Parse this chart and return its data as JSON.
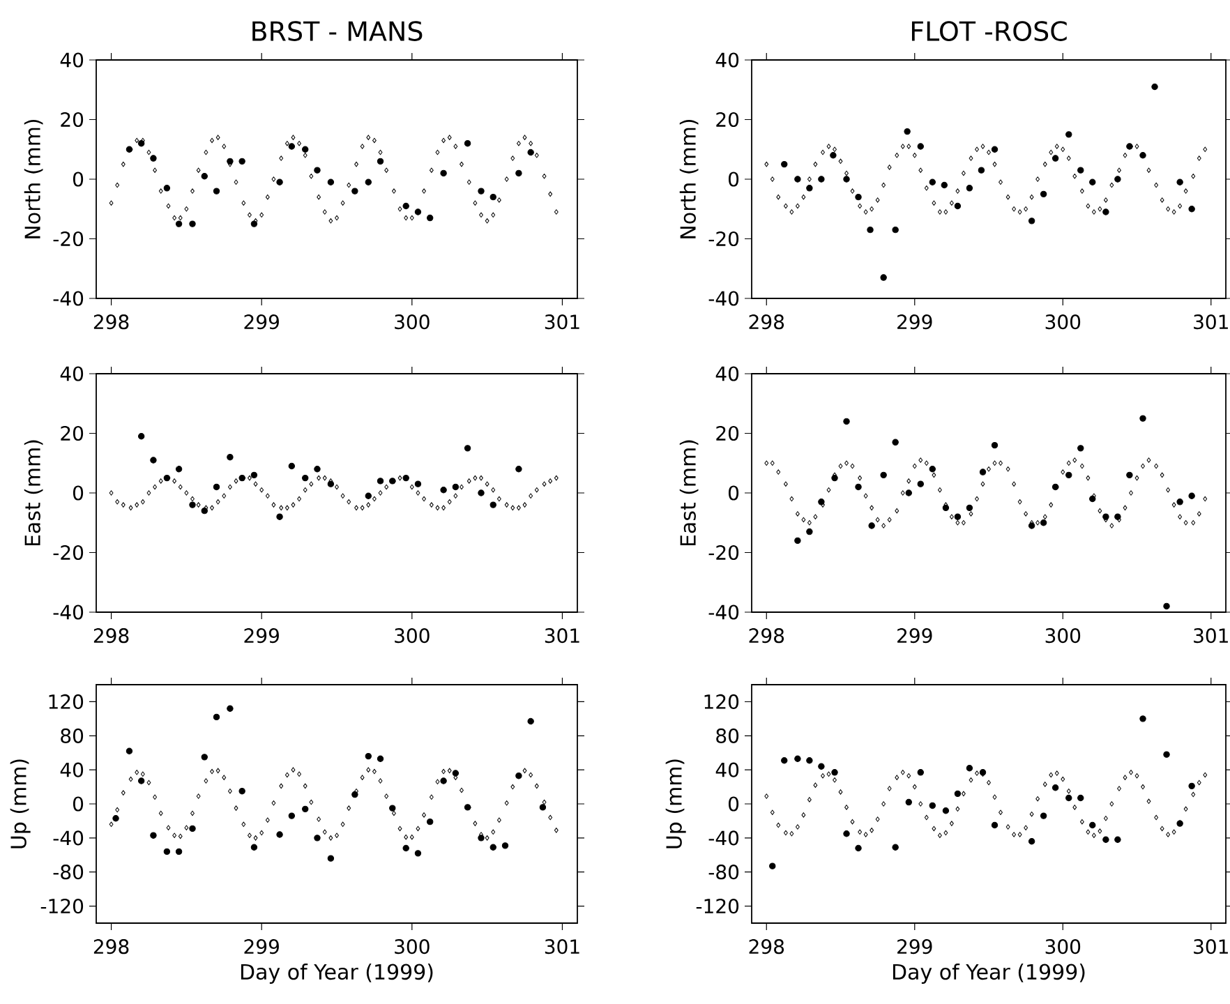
{
  "chart_data": [
    {
      "type": "scatter",
      "title": "BRST   - MANS",
      "ylabel": "North (mm)",
      "xlim": [
        297.9,
        301.1
      ],
      "xticks": [
        298,
        299,
        300,
        301
      ],
      "ylim": [
        -40,
        40
      ],
      "yticks": [
        -40,
        -20,
        0,
        20,
        40
      ],
      "x": [
        298,
        298.04,
        298.08,
        298.13,
        298.17,
        298.21,
        298.25,
        298.29,
        298.33,
        298.38,
        298.42,
        298.46,
        298.5,
        298.54,
        298.58,
        298.63,
        298.67,
        298.71,
        298.75,
        298.79,
        298.83,
        298.88,
        298.92,
        298.96,
        299,
        299.04,
        299.08,
        299.13,
        299.17,
        299.21,
        299.25,
        299.29,
        299.33,
        299.38,
        299.42,
        299.46,
        299.5,
        299.54,
        299.58,
        299.63,
        299.67,
        299.71,
        299.75,
        299.79,
        299.83,
        299.88,
        299.92,
        299.96,
        300,
        300.04,
        300.08,
        300.13,
        300.17,
        300.21,
        300.25,
        300.29,
        300.33,
        300.38,
        300.42,
        300.46,
        300.5,
        300.54,
        300.58,
        300.63,
        300.67,
        300.71,
        300.75,
        300.79,
        300.83,
        300.88,
        300.92,
        300.96
      ],
      "series": [
        {
          "color": "#000000",
          "marker": "diamond",
          "values": [
            -8,
            -2,
            5,
            10,
            13,
            13,
            9,
            3,
            -4,
            -9,
            -13,
            -13,
            -10,
            -4,
            3,
            9,
            13,
            14,
            11,
            5,
            -1,
            -8,
            -12,
            -14,
            -12,
            -6,
            0,
            7,
            12,
            14,
            12,
            8,
            1,
            -6,
            -11,
            -14,
            -13,
            -8,
            -2,
            5,
            11,
            14,
            13,
            9,
            3,
            -4,
            -10,
            -13,
            -13,
            null,
            -4,
            3,
            9,
            13,
            14,
            11,
            5,
            -1,
            -8,
            -12,
            -14,
            -12,
            -7,
            0,
            7,
            12,
            14,
            12,
            8,
            1,
            -5,
            -11
          ]
        },
        {
          "color": "#000000",
          "marker": "circle",
          "x": [
            298.12,
            298.2,
            298.28,
            298.37,
            298.45,
            298.54,
            298.62,
            298.7,
            298.79,
            298.87,
            298.95,
            299.12,
            299.2,
            299.29,
            299.37,
            299.46,
            299.62,
            299.71,
            299.79,
            299.96,
            300.04,
            300.12,
            300.21,
            300.37,
            300.46,
            300.54,
            300.71,
            300.79
          ],
          "values": [
            10,
            12,
            7,
            -3,
            -15,
            -15,
            1,
            -4,
            6,
            6,
            -15,
            -1,
            11,
            10,
            3,
            -1,
            -4,
            -1,
            6,
            -9,
            -11,
            -13,
            2,
            12,
            -4,
            -6,
            2,
            9
          ]
        }
      ]
    },
    {
      "type": "scatter",
      "title": "FLOT -ROSC",
      "ylabel": "North (mm)",
      "xlim": [
        297.9,
        301.1
      ],
      "xticks": [
        298,
        299,
        300,
        301
      ],
      "ylim": [
        -40,
        40
      ],
      "yticks": [
        -40,
        -20,
        0,
        20,
        40
      ],
      "x": [
        298,
        298.04,
        298.08,
        298.13,
        298.17,
        298.21,
        298.25,
        298.29,
        298.33,
        298.38,
        298.42,
        298.46,
        298.5,
        298.54,
        298.58,
        298.63,
        298.67,
        298.71,
        298.75,
        298.79,
        298.83,
        298.88,
        298.92,
        298.96,
        299,
        299.04,
        299.08,
        299.13,
        299.17,
        299.21,
        299.25,
        299.29,
        299.33,
        299.38,
        299.42,
        299.46,
        299.5,
        299.54,
        299.58,
        299.63,
        299.67,
        299.71,
        299.75,
        299.79,
        299.83,
        299.88,
        299.92,
        299.96,
        300,
        300.04,
        300.08,
        300.13,
        300.17,
        300.21,
        300.25,
        300.29,
        300.33,
        300.38,
        300.42,
        300.46,
        300.5,
        300.54,
        300.58,
        300.63,
        300.67,
        300.71,
        300.75,
        300.79,
        300.83,
        300.88,
        300.92,
        300.96
      ],
      "series": [
        {
          "color": "#000000",
          "marker": "diamond",
          "values": [
            5,
            0,
            -6,
            -9,
            -11,
            -9,
            -6,
            0,
            5,
            9,
            11,
            10,
            6,
            2,
            -4,
            -9,
            -11,
            -10,
            -7,
            -2,
            4,
            8,
            11,
            11,
            8,
            3,
            -3,
            -8,
            -11,
            -11,
            -8,
            -4,
            2,
            7,
            10,
            11,
            9,
            5,
            -1,
            -6,
            -10,
            -11,
            -10,
            -6,
            0,
            5,
            9,
            11,
            10,
            7,
            1,
            -4,
            -9,
            -11,
            -10,
            -7,
            -2,
            3,
            8,
            11,
            11,
            null,
            3,
            -2,
            -7,
            -10,
            -11,
            -9,
            -4,
            1,
            7,
            10
          ]
        },
        {
          "color": "#000000",
          "marker": "circle",
          "x": [
            298.12,
            298.21,
            298.29,
            298.37,
            298.45,
            298.54,
            298.62,
            298.7,
            298.79,
            298.87,
            298.95,
            299.04,
            299.12,
            299.2,
            299.29,
            299.37,
            299.45,
            299.54,
            299.79,
            299.87,
            299.95,
            300.04,
            300.12,
            300.2,
            300.29,
            300.37,
            300.45,
            300.54,
            300.62,
            300.79,
            300.87
          ],
          "values": [
            5,
            0,
            -3,
            0,
            8,
            0,
            -6,
            -17,
            -33,
            -17,
            16,
            11,
            -1,
            -2,
            -9,
            -3,
            3,
            10,
            -14,
            -5,
            7,
            15,
            3,
            -1,
            -11,
            0,
            11,
            8,
            31,
            -1,
            -10
          ]
        }
      ]
    },
    {
      "type": "scatter",
      "ylabel": "East  (mm)",
      "xlim": [
        297.9,
        301.1
      ],
      "xticks": [
        298,
        299,
        300,
        301
      ],
      "ylim": [
        -40,
        40
      ],
      "yticks": [
        -40,
        -20,
        0,
        20,
        40
      ],
      "x": [
        298,
        298.04,
        298.08,
        298.13,
        298.17,
        298.21,
        298.25,
        298.29,
        298.33,
        298.38,
        298.42,
        298.46,
        298.5,
        298.54,
        298.58,
        298.63,
        298.67,
        298.71,
        298.75,
        298.79,
        298.83,
        298.88,
        298.92,
        298.96,
        299,
        299.04,
        299.08,
        299.13,
        299.17,
        299.21,
        299.25,
        299.29,
        299.33,
        299.38,
        299.42,
        299.46,
        299.5,
        299.54,
        299.58,
        299.63,
        299.67,
        299.71,
        299.75,
        299.79,
        299.83,
        299.88,
        299.92,
        299.96,
        300,
        300.04,
        300.08,
        300.13,
        300.17,
        300.21,
        300.25,
        300.29,
        300.33,
        300.38,
        300.42,
        300.46,
        300.5,
        300.54,
        300.58,
        300.63,
        300.67,
        300.71,
        300.75,
        300.79,
        300.83,
        300.88,
        300.92,
        300.96
      ],
      "series": [
        {
          "color": "#000000",
          "marker": "diamond",
          "values": [
            0,
            -3,
            -4,
            -5,
            -4,
            -3,
            0,
            2,
            4,
            5,
            4,
            2,
            0,
            -2,
            -4,
            -5,
            -5,
            -3,
            -1,
            2,
            4,
            5,
            5,
            3,
            1,
            -1,
            -4,
            -5,
            -5,
            -4,
            -2,
            1,
            3,
            5,
            5,
            4,
            2,
            -1,
            -3,
            -5,
            -5,
            -4,
            -2,
            0,
            2,
            4,
            5,
            null,
            2,
            0,
            -2,
            -4,
            -5,
            -5,
            -3,
            -1,
            2,
            4,
            5,
            5,
            3,
            1,
            -2,
            -4,
            -5,
            -5,
            -4,
            -1,
            1,
            3,
            4,
            5
          ]
        },
        {
          "color": "#000000",
          "marker": "circle",
          "x": [
            298.2,
            298.28,
            298.37,
            298.45,
            298.54,
            298.62,
            298.7,
            298.79,
            298.87,
            298.95,
            299.12,
            299.2,
            299.29,
            299.37,
            299.46,
            299.71,
            299.79,
            299.87,
            299.96,
            300.04,
            300.21,
            300.29,
            300.37,
            300.46,
            300.54,
            300.71
          ],
          "values": [
            19,
            11,
            5,
            8,
            -4,
            -6,
            2,
            12,
            5,
            6,
            -8,
            9,
            5,
            8,
            3,
            -1,
            4,
            4,
            5,
            3,
            1,
            2,
            15,
            0,
            -4,
            8
          ]
        }
      ]
    },
    {
      "type": "scatter",
      "ylabel": "East  (mm)",
      "xlim": [
        297.9,
        301.1
      ],
      "xticks": [
        298,
        299,
        300,
        301
      ],
      "ylim": [
        -40,
        40
      ],
      "yticks": [
        -40,
        -20,
        0,
        20,
        40
      ],
      "x": [
        298,
        298.04,
        298.08,
        298.13,
        298.17,
        298.21,
        298.25,
        298.29,
        298.33,
        298.38,
        298.42,
        298.46,
        298.5,
        298.54,
        298.58,
        298.63,
        298.67,
        298.71,
        298.75,
        298.79,
        298.83,
        298.88,
        298.92,
        298.96,
        299,
        299.04,
        299.08,
        299.13,
        299.17,
        299.21,
        299.25,
        299.29,
        299.33,
        299.38,
        299.42,
        299.46,
        299.5,
        299.54,
        299.58,
        299.63,
        299.67,
        299.71,
        299.75,
        299.79,
        299.83,
        299.88,
        299.92,
        299.96,
        300,
        300.04,
        300.08,
        300.13,
        300.17,
        300.21,
        300.25,
        300.29,
        300.33,
        300.38,
        300.42,
        300.46,
        300.5,
        300.54,
        300.58,
        300.63,
        300.67,
        300.71,
        300.75,
        300.79,
        300.83,
        300.88,
        300.92,
        300.96
      ],
      "series": [
        {
          "color": "#000000",
          "marker": "diamond",
          "values": [
            10,
            10,
            7,
            3,
            -2,
            -7,
            -9,
            -10,
            -8,
            -4,
            1,
            6,
            9,
            10,
            9,
            5,
            -1,
            -5,
            -9,
            -11,
            -9,
            -6,
            0,
            4,
            9,
            11,
            10,
            6,
            1,
            -4,
            -8,
            -10,
            -10,
            -7,
            -2,
            3,
            8,
            10,
            10,
            8,
            3,
            -3,
            -7,
            -10,
            -10,
            -8,
            -4,
            2,
            7,
            10,
            11,
            9,
            5,
            -1,
            -6,
            -9,
            -11,
            -9,
            -5,
            0,
            5,
            9,
            11,
            9,
            6,
            1,
            -4,
            -8,
            -10,
            -10,
            -7,
            -2
          ]
        },
        {
          "color": "#000000",
          "marker": "circle",
          "x": [
            298.21,
            298.29,
            298.37,
            298.46,
            298.54,
            298.62,
            298.71,
            298.79,
            298.87,
            298.96,
            299.04,
            299.12,
            299.21,
            299.29,
            299.37,
            299.46,
            299.54,
            299.79,
            299.87,
            299.95,
            300.04,
            300.12,
            300.2,
            300.29,
            300.37,
            300.45,
            300.54,
            300.7,
            300.79,
            300.87
          ],
          "values": [
            -16,
            -13,
            -3,
            5,
            24,
            2,
            -11,
            6,
            17,
            0,
            3,
            8,
            -5,
            -8,
            -5,
            7,
            16,
            -11,
            -10,
            2,
            6,
            15,
            -2,
            -8,
            -8,
            6,
            25,
            -38,
            -3,
            -1
          ]
        }
      ]
    },
    {
      "type": "scatter",
      "ylabel": "Up (mm)",
      "xlabel": "Day of Year (1999)",
      "xlim": [
        297.9,
        301.1
      ],
      "xticks": [
        298,
        299,
        300,
        301
      ],
      "ylim": [
        -140,
        140
      ],
      "yticks": [
        -120,
        -80,
        -40,
        0,
        40,
        80,
        120
      ],
      "x": [
        298,
        298.04,
        298.08,
        298.13,
        298.17,
        298.21,
        298.25,
        298.29,
        298.33,
        298.38,
        298.42,
        298.46,
        298.5,
        298.54,
        298.58,
        298.63,
        298.67,
        298.71,
        298.75,
        298.79,
        298.83,
        298.88,
        298.92,
        298.96,
        299,
        299.04,
        299.08,
        299.13,
        299.17,
        299.21,
        299.25,
        299.29,
        299.33,
        299.38,
        299.42,
        299.46,
        299.5,
        299.54,
        299.58,
        299.63,
        299.67,
        299.71,
        299.75,
        299.79,
        299.83,
        299.88,
        299.92,
        299.96,
        300,
        300.04,
        300.08,
        300.13,
        300.17,
        300.21,
        300.25,
        300.29,
        300.33,
        300.38,
        300.42,
        300.46,
        300.5,
        300.54,
        300.58,
        300.63,
        300.67,
        300.71,
        300.75,
        300.79,
        300.83,
        300.88,
        300.92,
        300.96
      ],
      "series": [
        {
          "color": "#000000",
          "marker": "diamond",
          "values": [
            -24,
            -7,
            13,
            29,
            37,
            35,
            25,
            8,
            -11,
            -28,
            -37,
            -38,
            -28,
            -11,
            9,
            27,
            38,
            39,
            31,
            15,
            -5,
            -24,
            -37,
            -40,
            -34,
            -19,
            1,
            21,
            34,
            40,
            35,
            21,
            2,
            -18,
            -33,
            -40,
            -37,
            -24,
            -5,
            15,
            31,
            40,
            38,
            27,
            9,
            -11,
            -29,
            -39,
            -39,
            -29,
            -13,
            8,
            26,
            38,
            39,
            31,
            16,
            -4,
            -23,
            -36,
            -40,
            -33,
            -19,
            1,
            20,
            null,
            39,
            34,
            21,
            2,
            -16,
            -31
          ]
        },
        {
          "color": "#000000",
          "marker": "circle",
          "x": [
            298.03,
            298.12,
            298.2,
            298.28,
            298.37,
            298.45,
            298.54,
            298.62,
            298.7,
            298.79,
            298.87,
            298.95,
            299.12,
            299.2,
            299.29,
            299.37,
            299.46,
            299.62,
            299.71,
            299.79,
            299.87,
            299.96,
            300.04,
            300.12,
            300.21,
            300.29,
            300.37,
            300.46,
            300.54,
            300.62,
            300.71,
            300.79,
            300.87
          ],
          "values": [
            -17,
            62,
            27,
            -37,
            -56,
            -56,
            -29,
            55,
            102,
            112,
            15,
            -51,
            -36,
            -14,
            -6,
            -40,
            -64,
            11,
            56,
            53,
            -5,
            -52,
            -58,
            -21,
            27,
            36,
            -4,
            -40,
            -51,
            -49,
            33,
            97,
            -4
          ]
        }
      ]
    },
    {
      "type": "scatter",
      "ylabel": "Up (mm)",
      "xlabel": "Day of Year (1999)",
      "xlim": [
        297.9,
        301.1
      ],
      "xticks": [
        298,
        299,
        300,
        301
      ],
      "ylim": [
        -140,
        140
      ],
      "yticks": [
        -120,
        -80,
        -40,
        0,
        40,
        80,
        120
      ],
      "x": [
        298,
        298.04,
        298.08,
        298.13,
        298.17,
        298.21,
        298.25,
        298.29,
        298.33,
        298.38,
        298.42,
        298.46,
        298.5,
        298.54,
        298.58,
        298.63,
        298.67,
        298.71,
        298.75,
        298.79,
        298.83,
        298.88,
        298.92,
        298.96,
        299,
        299.04,
        299.08,
        299.13,
        299.17,
        299.21,
        299.25,
        299.29,
        299.33,
        299.38,
        299.42,
        299.46,
        299.5,
        299.54,
        299.58,
        299.63,
        299.67,
        299.71,
        299.75,
        299.79,
        299.83,
        299.88,
        299.92,
        299.96,
        300,
        300.04,
        300.08,
        300.13,
        300.17,
        300.21,
        300.25,
        300.29,
        300.33,
        300.38,
        300.42,
        300.46,
        300.5,
        300.54,
        300.58,
        300.63,
        300.67,
        300.71,
        300.75,
        300.79,
        300.83,
        300.88,
        300.92,
        300.96
      ],
      "series": [
        {
          "color": "#000000",
          "marker": "diamond",
          "values": [
            9,
            -10,
            -25,
            -34,
            -35,
            -27,
            -13,
            5,
            22,
            33,
            35,
            28,
            14,
            -4,
            -21,
            -33,
            -36,
            -31,
            -18,
            0,
            18,
            31,
            37,
            33,
            20,
            0,
            -16,
            -29,
            -37,
            -34,
            -23,
            -6,
            12,
            28,
            36,
            35,
            25,
            8,
            -10,
            -27,
            -36,
            -36,
            -28,
            -12,
            6,
            23,
            34,
            36,
            29,
            15,
            -4,
            -21,
            -33,
            -37,
            -32,
            -17,
            0,
            18,
            31,
            37,
            33,
            20,
            3,
            -16,
            -29,
            -36,
            -33,
            -22,
            -6,
            11,
            25,
            34
          ]
        },
        {
          "color": "#000000",
          "marker": "circle",
          "x": [
            298.04,
            298.12,
            298.21,
            298.29,
            298.37,
            298.46,
            298.54,
            298.62,
            298.87,
            298.96,
            299.04,
            299.12,
            299.21,
            299.29,
            299.37,
            299.46,
            299.54,
            299.79,
            299.87,
            299.95,
            300.04,
            300.12,
            300.2,
            300.29,
            300.37,
            300.54,
            300.7,
            300.79,
            300.87
          ],
          "values": [
            -73,
            51,
            53,
            51,
            44,
            37,
            -35,
            -52,
            -51,
            2,
            37,
            -2,
            -8,
            12,
            42,
            37,
            -25,
            -44,
            -14,
            19,
            7,
            7,
            -25,
            -42,
            -42,
            100,
            58,
            -23,
            21
          ]
        }
      ]
    }
  ]
}
